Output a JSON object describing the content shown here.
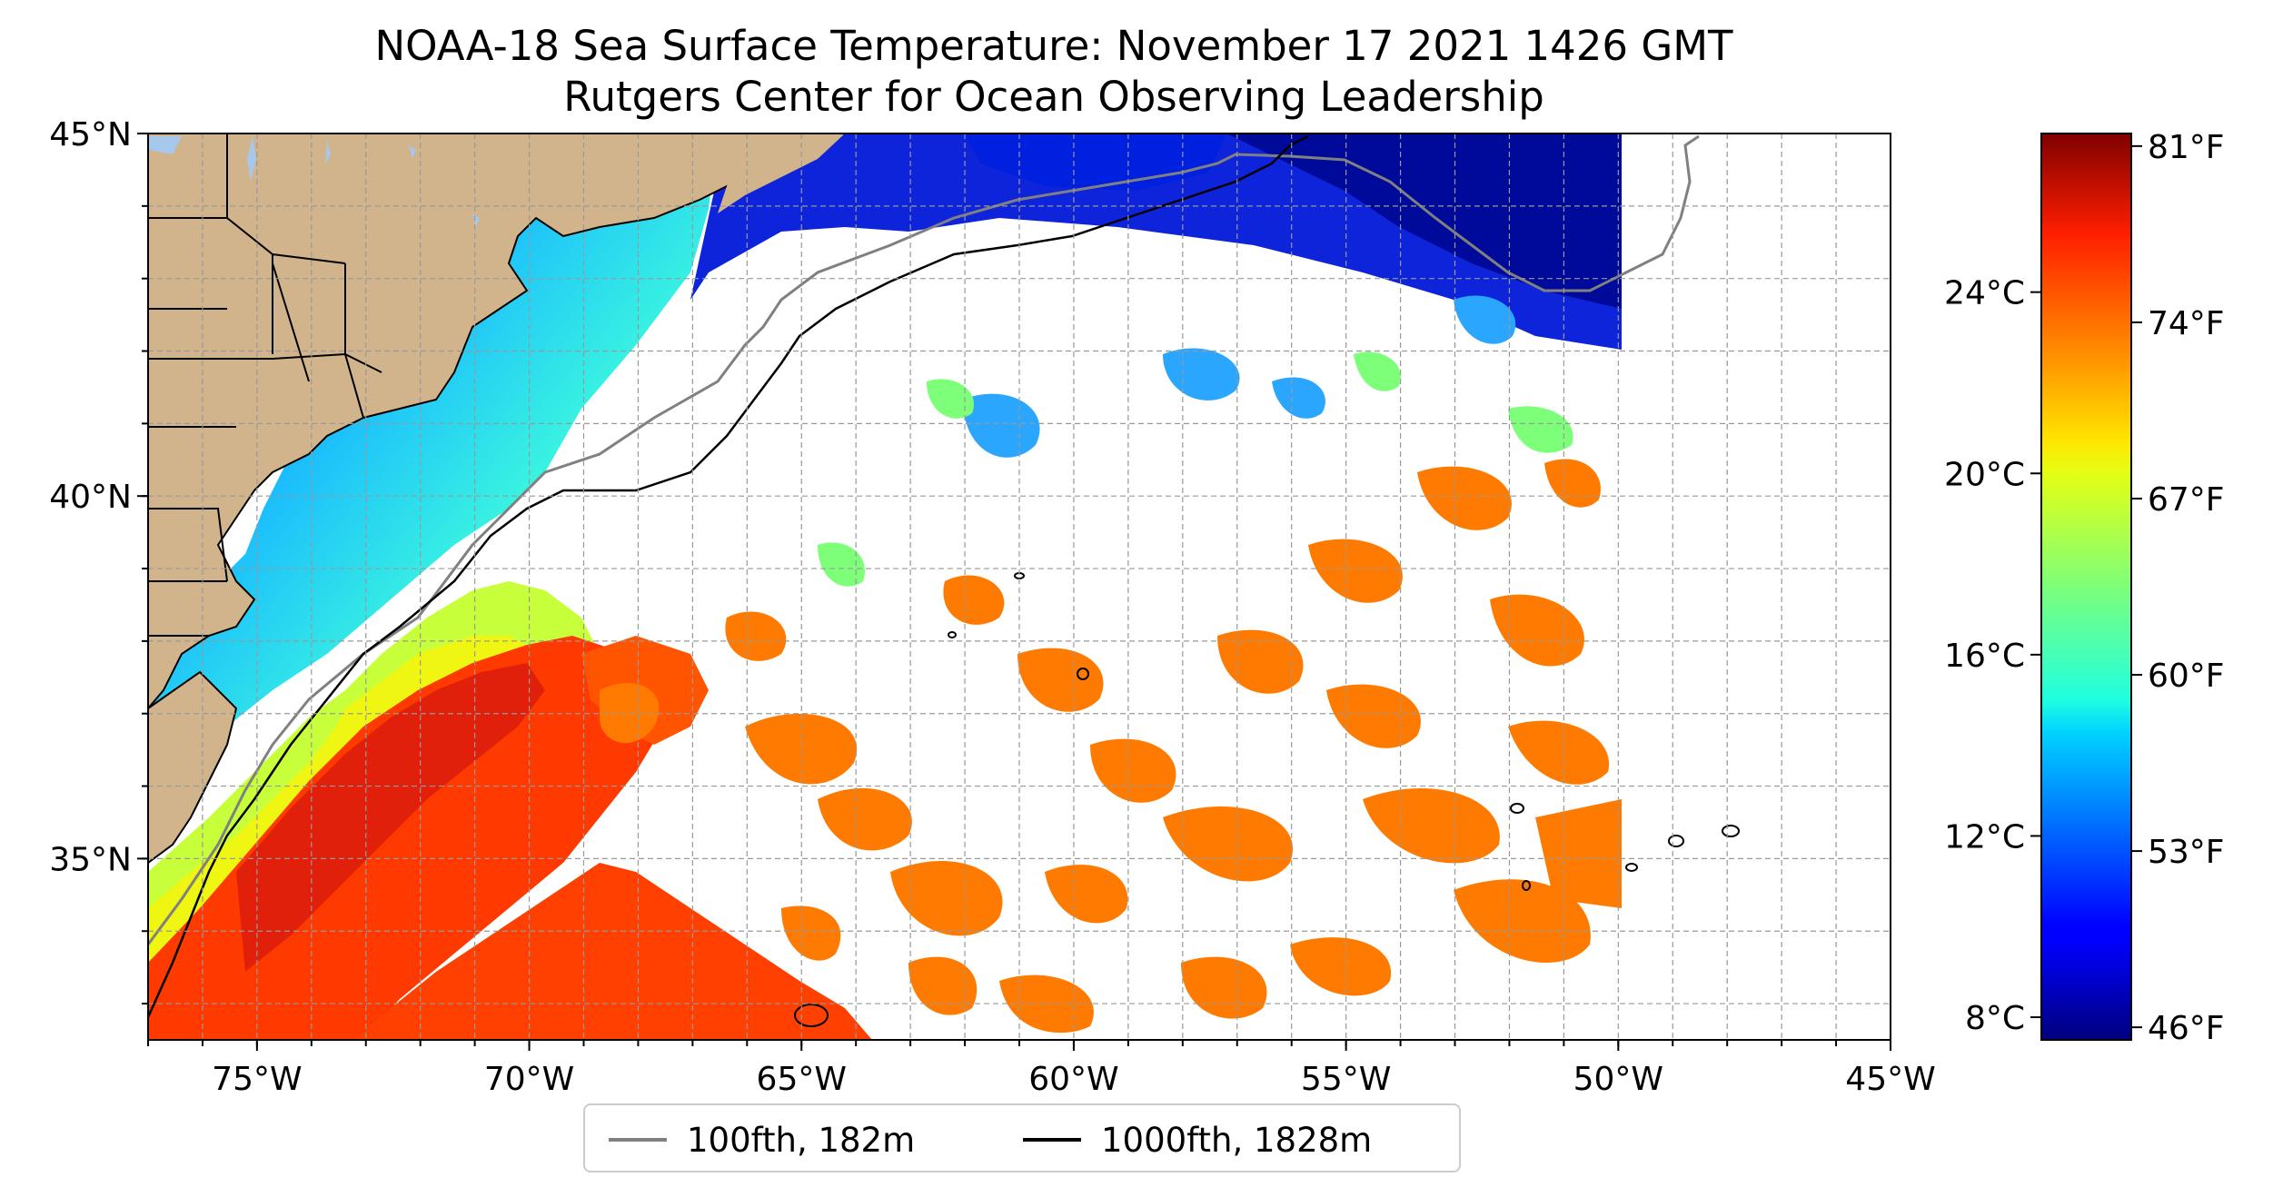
{
  "title": "NOAA-18 Sea Surface Temperature: November 17 2021 1426 GMT",
  "subtitle": "Rutgers Center for Ocean Observing Leadership",
  "map": {
    "lon_range": [
      -77,
      -45
    ],
    "lat_range": [
      32.5,
      45
    ],
    "lat_ticks": [
      {
        "value": 45,
        "label": "45°N"
      },
      {
        "value": 40,
        "label": "40°N"
      },
      {
        "value": 35,
        "label": "35°N"
      }
    ],
    "lon_ticks": [
      {
        "value": -75,
        "label": "75°W"
      },
      {
        "value": -70,
        "label": "70°W"
      },
      {
        "value": -65,
        "label": "65°W"
      },
      {
        "value": -60,
        "label": "60°W"
      },
      {
        "value": -55,
        "label": "55°W"
      },
      {
        "value": -50,
        "label": "50°W"
      },
      {
        "value": -45,
        "label": "45°W"
      }
    ],
    "data_east_limit": -50,
    "land_color": "#d2b48c",
    "lake_color": "#a6c8ec",
    "gridlines": true
  },
  "legend": {
    "items": [
      {
        "label": "100fth, 182m",
        "color": "#808080"
      },
      {
        "label": "1000fth, 1828m",
        "color": "#000000"
      }
    ],
    "placement": "bottom-center"
  },
  "colorbar": {
    "colormap": "jet",
    "range_celsius": [
      7.5,
      27.5
    ],
    "celsius_ticks": [
      {
        "value": 8,
        "label": "8°C"
      },
      {
        "value": 12,
        "label": "12°C"
      },
      {
        "value": 16,
        "label": "16°C"
      },
      {
        "value": 20,
        "label": "20°C"
      },
      {
        "value": 24,
        "label": "24°C"
      }
    ],
    "fahrenheit_ticks": [
      {
        "value": 46,
        "label": "46°F"
      },
      {
        "value": 53,
        "label": "53°F"
      },
      {
        "value": 60,
        "label": "60°F"
      },
      {
        "value": 67,
        "label": "67°F"
      },
      {
        "value": 74,
        "label": "74°F"
      },
      {
        "value": 81,
        "label": "81°F"
      }
    ]
  }
}
